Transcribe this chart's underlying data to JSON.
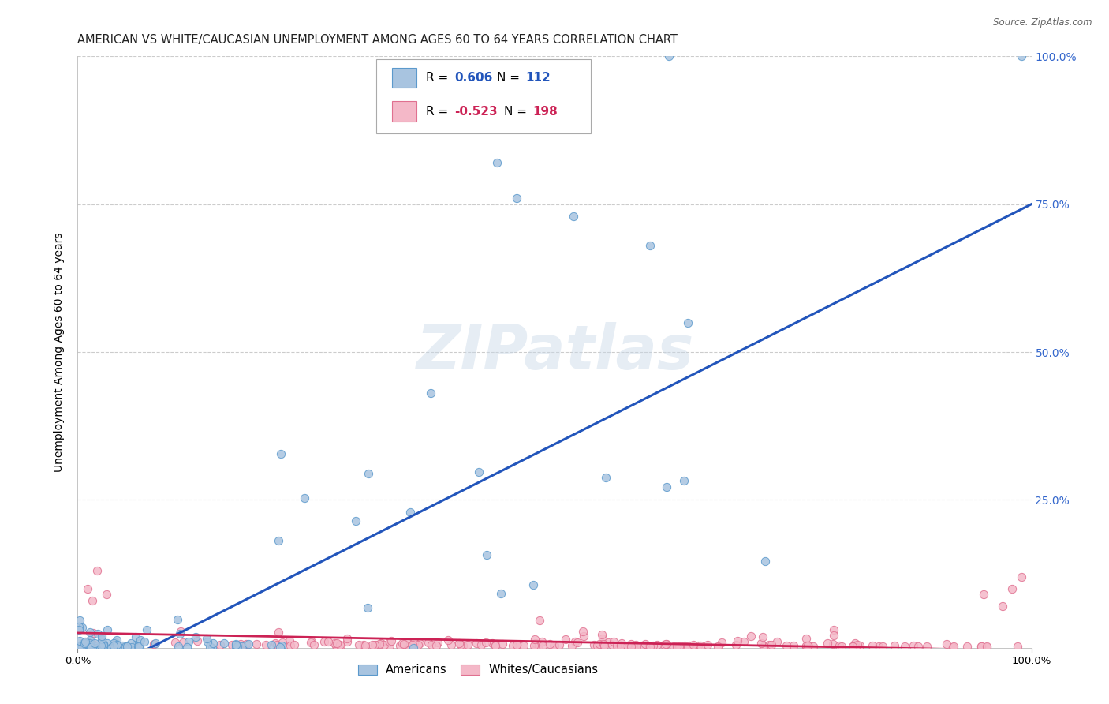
{
  "title": "AMERICAN VS WHITE/CAUCASIAN UNEMPLOYMENT AMONG AGES 60 TO 64 YEARS CORRELATION CHART",
  "source": "Source: ZipAtlas.com",
  "ylabel": "Unemployment Among Ages 60 to 64 years",
  "xlim": [
    0.0,
    1.0
  ],
  "ylim": [
    -0.02,
    1.05
  ],
  "plot_ylim": [
    0.0,
    1.0
  ],
  "watermark": "ZIPatlas",
  "american_color": "#a8c4e0",
  "american_edge_color": "#5b99cc",
  "white_color": "#f4b8c8",
  "white_edge_color": "#e07090",
  "trend_american_color": "#2255bb",
  "trend_white_color": "#cc2255",
  "background_color": "#ffffff",
  "grid_color": "#cccccc",
  "title_fontsize": 10.5,
  "axis_label_fontsize": 10,
  "tick_fontsize": 9.5,
  "scatter_size": 55,
  "ytick_color": "#3366cc"
}
